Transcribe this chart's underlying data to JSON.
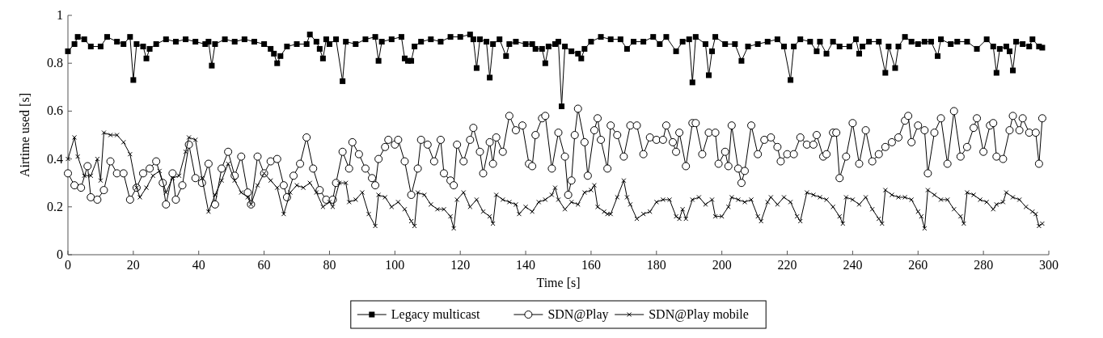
{
  "chart_data": {
    "type": "line",
    "xlabel": "Time [s]",
    "ylabel": "Airtime used [s]",
    "xlim": [
      0,
      300
    ],
    "ylim": [
      0,
      1
    ],
    "xticks": [
      0,
      20,
      40,
      60,
      80,
      100,
      120,
      140,
      160,
      180,
      200,
      220,
      240,
      260,
      280,
      300
    ],
    "yticks": [
      0,
      0.2,
      0.4,
      0.6,
      0.8,
      1
    ],
    "grid": false,
    "legend": "bottom",
    "line_style": "solid",
    "series": [
      {
        "name": "Legacy multicast",
        "color": "#000000",
        "marker": "square",
        "x": [
          0,
          2,
          3,
          5,
          7,
          10,
          12,
          15,
          17,
          19,
          20,
          21,
          23,
          24,
          25,
          27,
          30,
          33,
          36,
          39,
          42,
          43,
          44,
          45,
          48,
          51,
          54,
          57,
          60,
          62,
          63,
          64,
          65,
          67,
          70,
          73,
          74,
          76,
          77,
          78,
          79,
          80,
          82,
          84,
          85,
          88,
          91,
          94,
          95,
          96,
          99,
          102,
          103,
          104,
          105,
          106,
          108,
          111,
          114,
          117,
          120,
          123,
          124,
          125,
          126,
          128,
          129,
          130,
          132,
          134,
          135,
          137,
          140,
          142,
          143,
          145,
          146,
          147,
          149,
          150,
          151,
          152,
          154,
          156,
          157,
          158,
          160,
          163,
          166,
          169,
          171,
          173,
          176,
          179,
          181,
          183,
          186,
          188,
          190,
          191,
          192,
          195,
          196,
          197,
          198,
          201,
          204,
          206,
          208,
          211,
          214,
          217,
          219,
          221,
          222,
          224,
          227,
          229,
          230,
          232,
          234,
          236,
          239,
          241,
          242,
          243,
          245,
          248,
          250,
          251,
          253,
          254,
          256,
          258,
          260,
          262,
          264,
          266,
          267,
          270,
          272,
          275,
          278,
          281,
          283,
          284,
          285,
          287,
          288,
          289,
          290,
          292,
          294,
          295,
          297,
          298
        ],
        "values": [
          0.85,
          0.88,
          0.91,
          0.9,
          0.87,
          0.87,
          0.91,
          0.89,
          0.88,
          0.91,
          0.73,
          0.88,
          0.87,
          0.82,
          0.86,
          0.88,
          0.9,
          0.89,
          0.9,
          0.89,
          0.88,
          0.89,
          0.79,
          0.88,
          0.9,
          0.89,
          0.9,
          0.89,
          0.88,
          0.86,
          0.84,
          0.8,
          0.83,
          0.87,
          0.88,
          0.88,
          0.92,
          0.89,
          0.86,
          0.82,
          0.9,
          0.88,
          0.9,
          0.725,
          0.89,
          0.88,
          0.9,
          0.91,
          0.81,
          0.89,
          0.9,
          0.91,
          0.82,
          0.81,
          0.81,
          0.87,
          0.89,
          0.9,
          0.89,
          0.91,
          0.91,
          0.92,
          0.9,
          0.78,
          0.9,
          0.89,
          0.74,
          0.88,
          0.9,
          0.83,
          0.88,
          0.89,
          0.88,
          0.88,
          0.86,
          0.86,
          0.8,
          0.87,
          0.88,
          0.89,
          0.62,
          0.87,
          0.85,
          0.84,
          0.82,
          0.86,
          0.89,
          0.91,
          0.9,
          0.9,
          0.86,
          0.89,
          0.89,
          0.91,
          0.88,
          0.91,
          0.85,
          0.89,
          0.9,
          0.72,
          0.91,
          0.88,
          0.75,
          0.85,
          0.91,
          0.88,
          0.88,
          0.81,
          0.87,
          0.88,
          0.89,
          0.9,
          0.87,
          0.73,
          0.87,
          0.9,
          0.89,
          0.85,
          0.89,
          0.84,
          0.89,
          0.87,
          0.87,
          0.9,
          0.84,
          0.87,
          0.89,
          0.89,
          0.76,
          0.87,
          0.78,
          0.87,
          0.91,
          0.89,
          0.88,
          0.89,
          0.89,
          0.83,
          0.9,
          0.88,
          0.89,
          0.89,
          0.86,
          0.9,
          0.87,
          0.76,
          0.86,
          0.87,
          0.85,
          0.77,
          0.89,
          0.88,
          0.87,
          0.9,
          0.87,
          0.865
        ]
      },
      {
        "name": "SDN@Play",
        "color": "#000000",
        "marker": "circle",
        "x": [
          0,
          2,
          4,
          6,
          7,
          9,
          11,
          13,
          15,
          17,
          19,
          21,
          23,
          25,
          27,
          29,
          30,
          32,
          33,
          35,
          37,
          39,
          41,
          43,
          45,
          47,
          49,
          51,
          53,
          55,
          56,
          58,
          60,
          62,
          64,
          66,
          67,
          69,
          71,
          73,
          75,
          77,
          79,
          81,
          82,
          84,
          86,
          87,
          89,
          91,
          93,
          94,
          95,
          97,
          98,
          100,
          101,
          103,
          105,
          107,
          108,
          110,
          112,
          114,
          115,
          117,
          118,
          119,
          121,
          123,
          124,
          126,
          127,
          129,
          130,
          131,
          133,
          135,
          137,
          139,
          141,
          142,
          143,
          145,
          146,
          148,
          150,
          152,
          153,
          154,
          155,
          156,
          158,
          159,
          161,
          162,
          163,
          165,
          166,
          168,
          170,
          172,
          174,
          176,
          178,
          180,
          182,
          183,
          185,
          186,
          187,
          189,
          191,
          192,
          194,
          196,
          198,
          199,
          201,
          202,
          203,
          205,
          206,
          207,
          209,
          211,
          213,
          215,
          217,
          218,
          220,
          222,
          224,
          226,
          228,
          229,
          231,
          232,
          234,
          235,
          236,
          238,
          240,
          242,
          244,
          246,
          248,
          250,
          252,
          254,
          256,
          257,
          258,
          260,
          262,
          263,
          265,
          267,
          269,
          271,
          273,
          275,
          277,
          278,
          280,
          282,
          283,
          284,
          286,
          288,
          289,
          291,
          292,
          294,
          296,
          297,
          298
        ],
        "values": [
          0.34,
          0.29,
          0.28,
          0.37,
          0.24,
          0.23,
          0.27,
          0.39,
          0.34,
          0.34,
          0.23,
          0.28,
          0.34,
          0.36,
          0.39,
          0.3,
          0.21,
          0.34,
          0.23,
          0.29,
          0.46,
          0.32,
          0.3,
          0.38,
          0.21,
          0.36,
          0.43,
          0.33,
          0.41,
          0.26,
          0.21,
          0.41,
          0.34,
          0.39,
          0.4,
          0.29,
          0.24,
          0.33,
          0.38,
          0.49,
          0.36,
          0.27,
          0.23,
          0.23,
          0.3,
          0.43,
          0.36,
          0.47,
          0.42,
          0.36,
          0.32,
          0.29,
          0.4,
          0.45,
          0.48,
          0.46,
          0.48,
          0.39,
          0.25,
          0.36,
          0.48,
          0.46,
          0.39,
          0.48,
          0.34,
          0.31,
          0.29,
          0.46,
          0.39,
          0.48,
          0.53,
          0.43,
          0.34,
          0.47,
          0.38,
          0.49,
          0.43,
          0.58,
          0.52,
          0.54,
          0.38,
          0.37,
          0.5,
          0.57,
          0.58,
          0.36,
          0.51,
          0.41,
          0.25,
          0.31,
          0.5,
          0.61,
          0.47,
          0.33,
          0.52,
          0.57,
          0.48,
          0.36,
          0.54,
          0.5,
          0.41,
          0.54,
          0.54,
          0.42,
          0.49,
          0.48,
          0.48,
          0.54,
          0.47,
          0.43,
          0.51,
          0.37,
          0.55,
          0.55,
          0.42,
          0.51,
          0.51,
          0.38,
          0.43,
          0.37,
          0.54,
          0.36,
          0.3,
          0.35,
          0.54,
          0.42,
          0.48,
          0.49,
          0.45,
          0.39,
          0.42,
          0.42,
          0.49,
          0.46,
          0.46,
          0.5,
          0.41,
          0.42,
          0.51,
          0.51,
          0.32,
          0.41,
          0.55,
          0.38,
          0.52,
          0.39,
          0.42,
          0.45,
          0.47,
          0.49,
          0.56,
          0.58,
          0.47,
          0.54,
          0.52,
          0.34,
          0.51,
          0.57,
          0.38,
          0.6,
          0.41,
          0.45,
          0.53,
          0.57,
          0.43,
          0.54,
          0.55,
          0.41,
          0.4,
          0.52,
          0.58,
          0.52,
          0.57,
          0.51,
          0.51,
          0.38,
          0.57
        ]
      },
      {
        "name": "SDN@Play mobile",
        "color": "#000000",
        "marker": "cross",
        "x": [
          0,
          2,
          3,
          5,
          7,
          9,
          10,
          11,
          13,
          15,
          17,
          19,
          21,
          22,
          24,
          26,
          28,
          30,
          32,
          34,
          36,
          37,
          39,
          41,
          43,
          45,
          47,
          49,
          51,
          53,
          55,
          56,
          58,
          60,
          62,
          64,
          66,
          68,
          70,
          72,
          74,
          76,
          78,
          80,
          81,
          83,
          85,
          86,
          88,
          90,
          92,
          94,
          95,
          97,
          99,
          101,
          103,
          105,
          106,
          107,
          109,
          111,
          113,
          115,
          117,
          118,
          119,
          121,
          123,
          125,
          127,
          129,
          130,
          131,
          133,
          135,
          137,
          138,
          140,
          142,
          144,
          146,
          148,
          149,
          150,
          152,
          154,
          156,
          158,
          160,
          161,
          162,
          164,
          165,
          166,
          168,
          170,
          171,
          172,
          174,
          176,
          178,
          180,
          182,
          184,
          186,
          187,
          188,
          189,
          191,
          193,
          195,
          197,
          198,
          200,
          202,
          203,
          205,
          207,
          209,
          211,
          212,
          214,
          215,
          217,
          219,
          221,
          223,
          224,
          226,
          228,
          230,
          232,
          234,
          236,
          237,
          238,
          240,
          242,
          244,
          246,
          248,
          249,
          250,
          252,
          254,
          256,
          258,
          260,
          261,
          262,
          263,
          265,
          267,
          269,
          271,
          273,
          274,
          275,
          277,
          279,
          281,
          283,
          284,
          286,
          287,
          289,
          291,
          293,
          295,
          296,
          297,
          298
        ],
        "values": [
          0.4,
          0.49,
          0.41,
          0.33,
          0.33,
          0.4,
          0.31,
          0.51,
          0.5,
          0.5,
          0.47,
          0.42,
          0.28,
          0.24,
          0.28,
          0.33,
          0.35,
          0.26,
          0.32,
          0.33,
          0.43,
          0.49,
          0.48,
          0.32,
          0.18,
          0.25,
          0.31,
          0.38,
          0.31,
          0.26,
          0.24,
          0.21,
          0.29,
          0.34,
          0.31,
          0.28,
          0.17,
          0.26,
          0.29,
          0.28,
          0.3,
          0.26,
          0.2,
          0.22,
          0.2,
          0.3,
          0.3,
          0.22,
          0.23,
          0.26,
          0.17,
          0.12,
          0.25,
          0.24,
          0.2,
          0.22,
          0.19,
          0.14,
          0.12,
          0.26,
          0.25,
          0.21,
          0.19,
          0.19,
          0.16,
          0.11,
          0.23,
          0.26,
          0.2,
          0.23,
          0.18,
          0.16,
          0.13,
          0.25,
          0.23,
          0.22,
          0.21,
          0.17,
          0.2,
          0.18,
          0.22,
          0.23,
          0.25,
          0.28,
          0.23,
          0.19,
          0.22,
          0.21,
          0.26,
          0.27,
          0.29,
          0.2,
          0.18,
          0.17,
          0.17,
          0.24,
          0.31,
          0.24,
          0.21,
          0.15,
          0.17,
          0.18,
          0.22,
          0.23,
          0.23,
          0.16,
          0.15,
          0.19,
          0.15,
          0.23,
          0.24,
          0.21,
          0.23,
          0.16,
          0.16,
          0.2,
          0.24,
          0.23,
          0.22,
          0.23,
          0.16,
          0.14,
          0.22,
          0.24,
          0.21,
          0.24,
          0.22,
          0.16,
          0.14,
          0.26,
          0.25,
          0.24,
          0.23,
          0.2,
          0.16,
          0.13,
          0.24,
          0.23,
          0.21,
          0.24,
          0.19,
          0.15,
          0.13,
          0.27,
          0.25,
          0.24,
          0.24,
          0.23,
          0.18,
          0.16,
          0.11,
          0.27,
          0.25,
          0.23,
          0.23,
          0.19,
          0.16,
          0.13,
          0.26,
          0.25,
          0.23,
          0.22,
          0.19,
          0.21,
          0.22,
          0.26,
          0.24,
          0.23,
          0.2,
          0.18,
          0.17,
          0.12,
          0.13
        ]
      }
    ]
  }
}
